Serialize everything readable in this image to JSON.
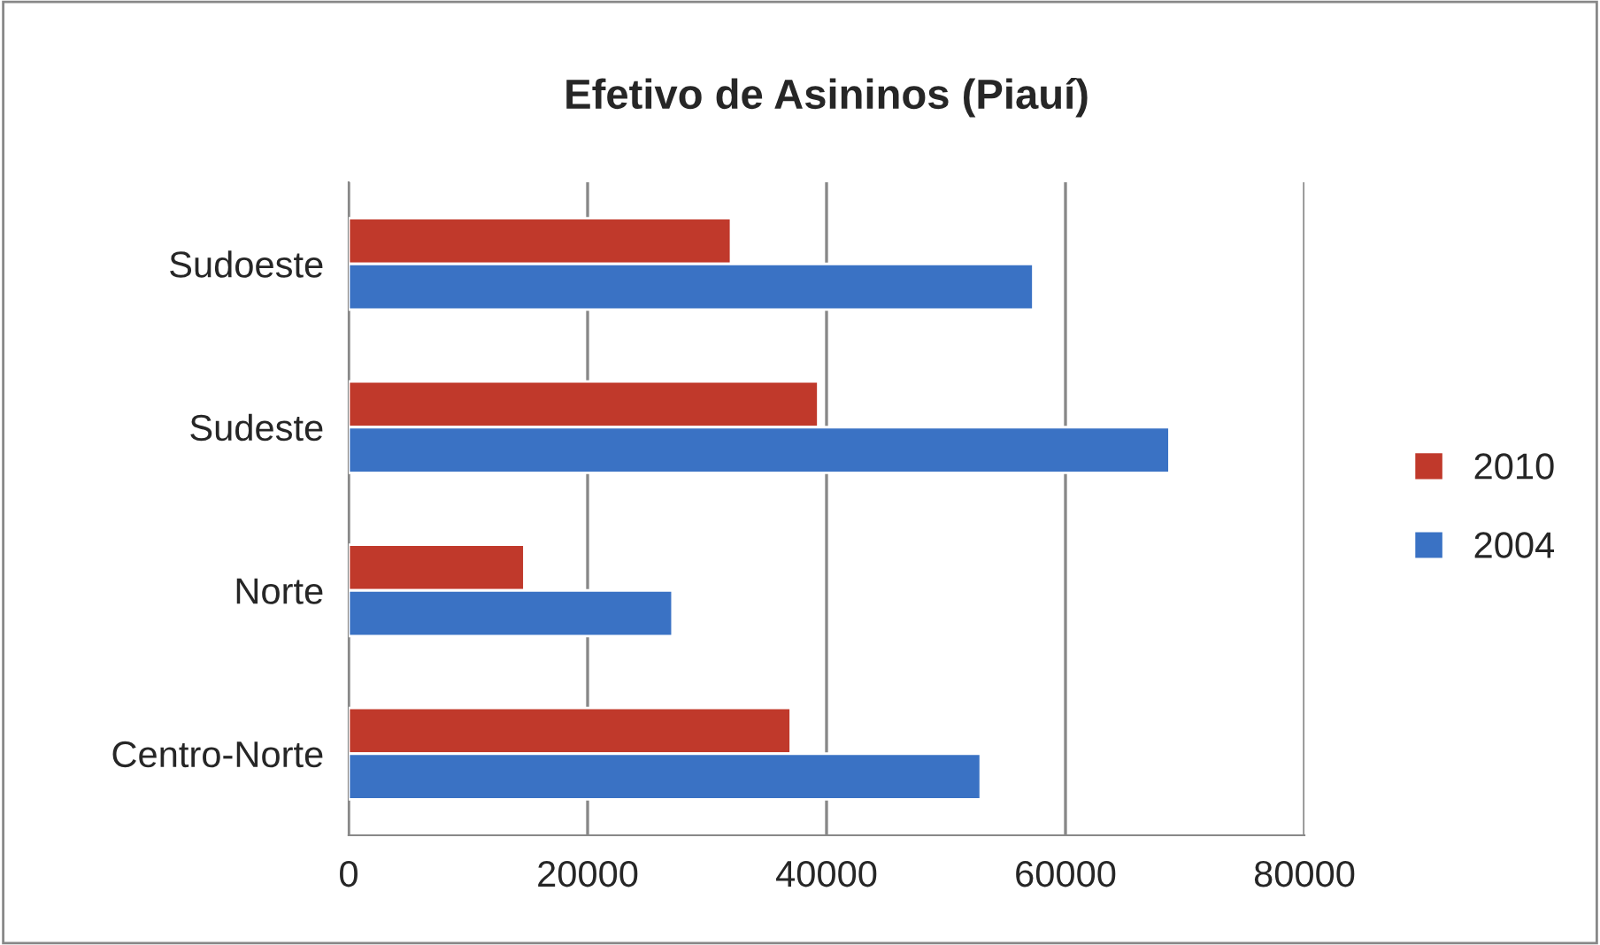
{
  "chart_data": {
    "type": "bar",
    "orientation": "horizontal",
    "title": "Efetivo de Asininos (Piauí)",
    "categories": [
      "Sudoeste",
      "Sudeste",
      "Norte",
      "Centro-Norte"
    ],
    "series": [
      {
        "name": "2010",
        "color": "#c0392b",
        "values": [
          32000,
          39300,
          14700,
          37000
        ]
      },
      {
        "name": "2004",
        "color": "#3a72c4",
        "values": [
          57300,
          68700,
          27100,
          52900
        ]
      }
    ],
    "xlim": [
      0,
      80000
    ],
    "xticks": [
      0,
      20000,
      40000,
      60000,
      80000
    ],
    "grid": "x",
    "legend": "right"
  }
}
